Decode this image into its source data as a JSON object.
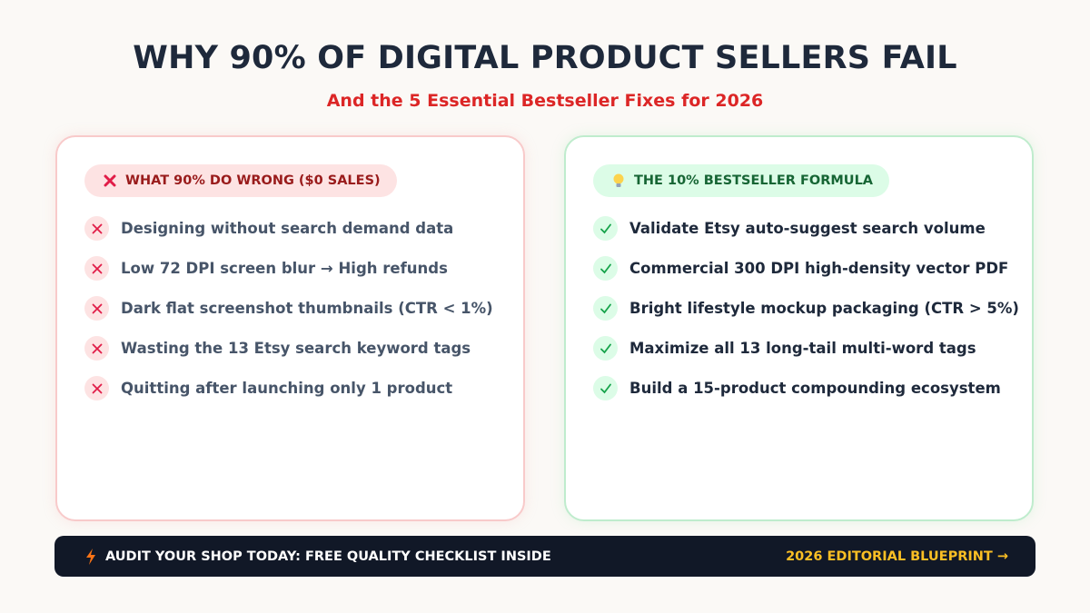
{
  "header": {
    "title": "WHY 90% OF DIGITAL PRODUCT SELLERS FAIL",
    "subtitle": "And the 5 Essential Bestseller Fixes for 2026"
  },
  "panels": [
    {
      "heading": "WHAT 90% DO WRONG ($0 SALES)",
      "items": [
        "Designing without search demand data",
        "Low 72 DPI screen blur → High refunds",
        "Dark flat screenshot thumbnails (CTR < 1%)",
        "Wasting the 13 Etsy search keyword tags",
        "Quitting after launching only 1 product"
      ]
    },
    {
      "heading": "THE 10% BESTSELLER FORMULA",
      "items": [
        "Validate Etsy auto-suggest search volume",
        "Commercial 300 DPI high-density vector PDF",
        "Bright lifestyle mockup packaging (CTR > 5%)",
        "Maximize all 13 long-tail multi-word tags",
        "Build a 15-product compounding ecosystem"
      ]
    }
  ],
  "footer": {
    "left": "AUDIT YOUR SHOP TODAY: FREE QUALITY CHECKLIST INSIDE",
    "right": "2026 EDITORIAL BLUEPRINT →"
  }
}
